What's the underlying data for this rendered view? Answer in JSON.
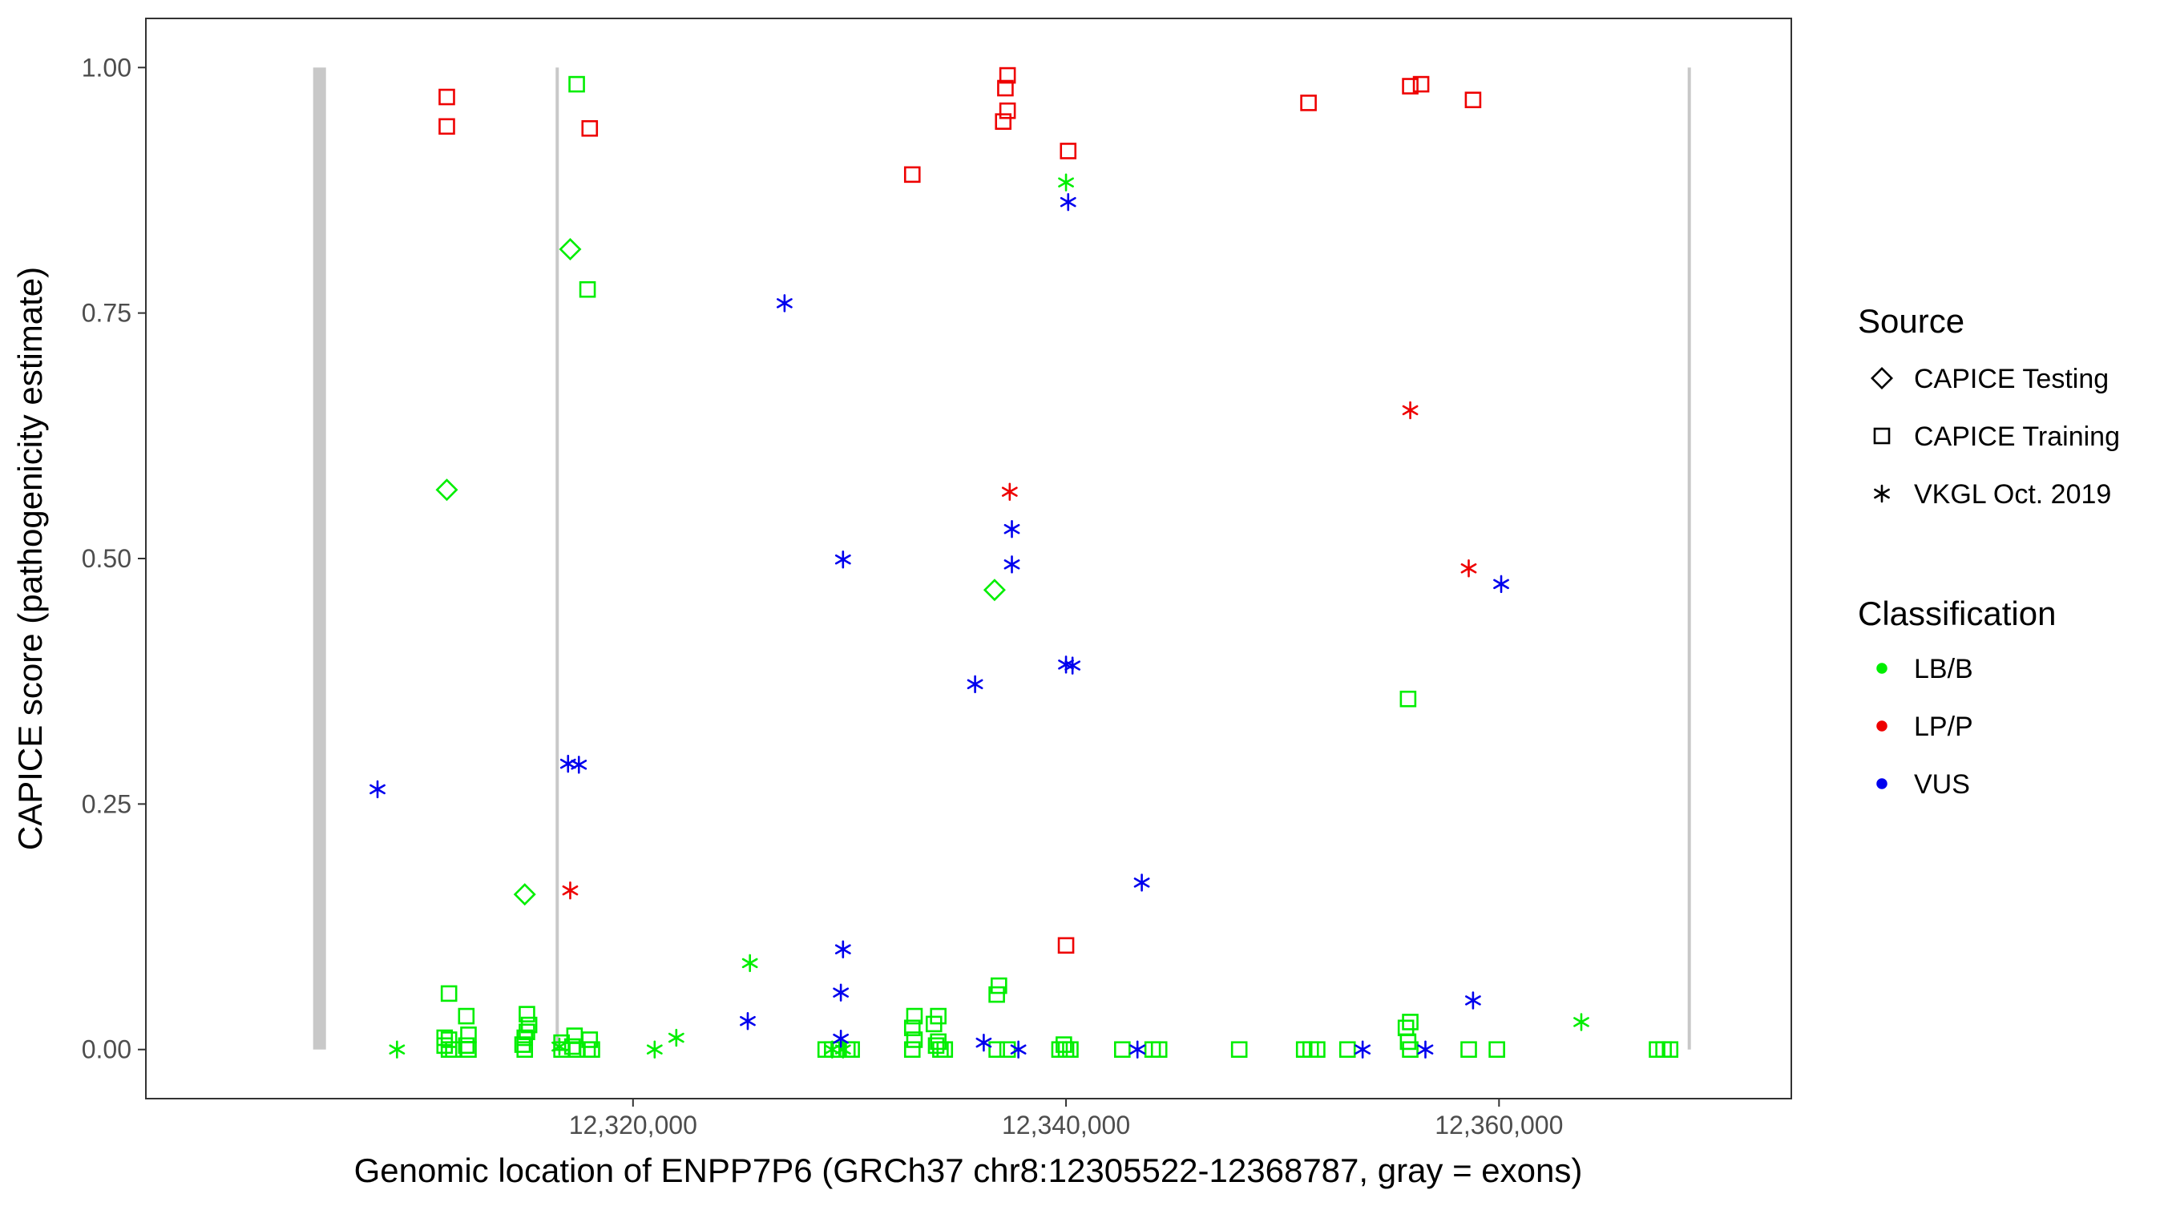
{
  "chart_data": {
    "type": "scatter",
    "title": "",
    "xlabel": "Genomic location of ENPP7P6 (GRCh37 chr8:12305522-12368787, gray = exons)",
    "ylabel": "CAPICE score (pathogenicity estimate)",
    "xlim": [
      12297500,
      12373500
    ],
    "ylim": [
      -0.05,
      1.05
    ],
    "x_ticks": [
      12320000,
      12340000,
      12360000
    ],
    "x_tick_labels": [
      "12,320,000",
      "12,340,000",
      "12,360,000"
    ],
    "y_ticks": [
      0,
      0.25,
      0.5,
      0.75,
      1.0
    ],
    "y_tick_labels": [
      "0.00",
      "0.25",
      "0.50",
      "0.75",
      "1.00"
    ],
    "grid": false,
    "exons": [
      {
        "x": 12305522,
        "kind": "thick"
      },
      {
        "x": 12316500,
        "kind": "thin"
      },
      {
        "x": 12368787,
        "kind": "thin"
      }
    ],
    "exon_color": "#c8c8c8",
    "legend": {
      "placement": "right",
      "source_title": "Source",
      "source_items": [
        {
          "label": "CAPICE Testing",
          "shape": "diamond"
        },
        {
          "label": "CAPICE Training",
          "shape": "square"
        },
        {
          "label": "VKGL Oct. 2019",
          "shape": "asterisk"
        }
      ],
      "class_title": "Classification",
      "class_items": [
        {
          "label": "LB/B",
          "color": "#00ee00"
        },
        {
          "label": "LP/P",
          "color": "#ee0000"
        },
        {
          "label": "VUS",
          "color": "#0000ee"
        }
      ]
    },
    "series": [
      {
        "source": "CAPICE Testing",
        "class": "LB/B",
        "shape": "diamond",
        "color": "#00ee00",
        "points": [
          [
            12311400,
            0.57
          ],
          [
            12315000,
            0.158
          ],
          [
            12317100,
            0.815
          ],
          [
            12336700,
            0.468
          ]
        ]
      },
      {
        "source": "CAPICE Training",
        "class": "LB/B",
        "shape": "square",
        "color": "#00ee00",
        "points": [
          [
            12317400,
            0.983
          ],
          [
            12317900,
            0.774
          ],
          [
            12355800,
            0.357
          ],
          [
            12311500,
            0.057
          ],
          [
            12312300,
            0.034
          ],
          [
            12315100,
            0.036
          ],
          [
            12315200,
            0.025
          ],
          [
            12315100,
            0.018
          ],
          [
            12315000,
            0.012
          ],
          [
            12314900,
            0.005
          ],
          [
            12315000,
            0.0
          ],
          [
            12311300,
            0.012
          ],
          [
            12311500,
            0.01
          ],
          [
            12311300,
            0.004
          ],
          [
            12311500,
            0.0
          ],
          [
            12311700,
            0.0
          ],
          [
            12312400,
            0.015
          ],
          [
            12312300,
            0.004
          ],
          [
            12312400,
            0.0
          ],
          [
            12316700,
            0.007
          ],
          [
            12316700,
            0.0
          ],
          [
            12317300,
            0.014
          ],
          [
            12317200,
            0.003
          ],
          [
            12317400,
            0.0
          ],
          [
            12318000,
            0.01
          ],
          [
            12317900,
            0.0
          ],
          [
            12318100,
            0.0
          ],
          [
            12328900,
            0.0
          ],
          [
            12329200,
            0.0
          ],
          [
            12329500,
            0.0
          ],
          [
            12329900,
            0.0
          ],
          [
            12330100,
            0.0
          ],
          [
            12333000,
            0.034
          ],
          [
            12332900,
            0.022
          ],
          [
            12333000,
            0.01
          ],
          [
            12332900,
            0.0
          ],
          [
            12334100,
            0.034
          ],
          [
            12333900,
            0.026
          ],
          [
            12334100,
            0.008
          ],
          [
            12334000,
            0.004
          ],
          [
            12334200,
            0.0
          ],
          [
            12334400,
            0.0
          ],
          [
            12336900,
            0.065
          ],
          [
            12336800,
            0.056
          ],
          [
            12336800,
            0.0
          ],
          [
            12337300,
            0.0
          ],
          [
            12339700,
            0.0
          ],
          [
            12339900,
            0.005
          ],
          [
            12340000,
            0.0
          ],
          [
            12340200,
            0.0
          ],
          [
            12342600,
            0.0
          ],
          [
            12344000,
            0.0
          ],
          [
            12344300,
            0.0
          ],
          [
            12348000,
            0.0
          ],
          [
            12351000,
            0.0
          ],
          [
            12351300,
            0.0
          ],
          [
            12351600,
            0.0
          ],
          [
            12353000,
            0.0
          ],
          [
            12355900,
            0.028
          ],
          [
            12355700,
            0.022
          ],
          [
            12355800,
            0.008
          ],
          [
            12355900,
            0.0
          ],
          [
            12358600,
            0.0
          ],
          [
            12359900,
            0.0
          ],
          [
            12367300,
            0.0
          ],
          [
            12367600,
            0.0
          ],
          [
            12367900,
            0.0
          ]
        ]
      },
      {
        "source": "CAPICE Training",
        "class": "LP/P",
        "shape": "square",
        "color": "#ee0000",
        "points": [
          [
            12311400,
            0.97
          ],
          [
            12311400,
            0.94
          ],
          [
            12318000,
            0.938
          ],
          [
            12332900,
            0.891
          ],
          [
            12337300,
            0.992
          ],
          [
            12337200,
            0.979
          ],
          [
            12337300,
            0.956
          ],
          [
            12337100,
            0.945
          ],
          [
            12340100,
            0.915
          ],
          [
            12340000,
            0.106
          ],
          [
            12351200,
            0.964
          ],
          [
            12355900,
            0.981
          ],
          [
            12356400,
            0.983
          ],
          [
            12358800,
            0.967
          ]
        ]
      },
      {
        "source": "VKGL Oct. 2019",
        "class": "LB/B",
        "shape": "asterisk",
        "color": "#00ee00",
        "points": [
          [
            12309100,
            0.0
          ],
          [
            12316600,
            0.003
          ],
          [
            12321000,
            0.0
          ],
          [
            12322000,
            0.012
          ],
          [
            12325400,
            0.088
          ],
          [
            12329200,
            0.0
          ],
          [
            12329700,
            0.0
          ],
          [
            12340000,
            0.883
          ],
          [
            12363800,
            0.028
          ]
        ]
      },
      {
        "source": "VKGL Oct. 2019",
        "class": "LP/P",
        "shape": "asterisk",
        "color": "#ee0000",
        "points": [
          [
            12317100,
            0.162
          ],
          [
            12337400,
            0.568
          ],
          [
            12355900,
            0.651
          ],
          [
            12358600,
            0.49
          ]
        ]
      },
      {
        "source": "VKGL Oct. 2019",
        "class": "VUS",
        "shape": "asterisk",
        "color": "#0000ee",
        "points": [
          [
            12308200,
            0.265
          ],
          [
            12317000,
            0.291
          ],
          [
            12317500,
            0.29
          ],
          [
            12325300,
            0.029
          ],
          [
            12327000,
            0.76
          ],
          [
            12329700,
            0.499
          ],
          [
            12329700,
            0.102
          ],
          [
            12329600,
            0.058
          ],
          [
            12329600,
            0.011
          ],
          [
            12335800,
            0.372
          ],
          [
            12336200,
            0.007
          ],
          [
            12337500,
            0.53
          ],
          [
            12337500,
            0.494
          ],
          [
            12337800,
            0.0
          ],
          [
            12340100,
            0.863
          ],
          [
            12340000,
            0.392
          ],
          [
            12340300,
            0.391
          ],
          [
            12343500,
            0.17
          ],
          [
            12343300,
            0.0
          ],
          [
            12353700,
            0.0
          ],
          [
            12356600,
            0.0
          ],
          [
            12358800,
            0.05
          ],
          [
            12360100,
            0.474
          ]
        ]
      }
    ]
  }
}
